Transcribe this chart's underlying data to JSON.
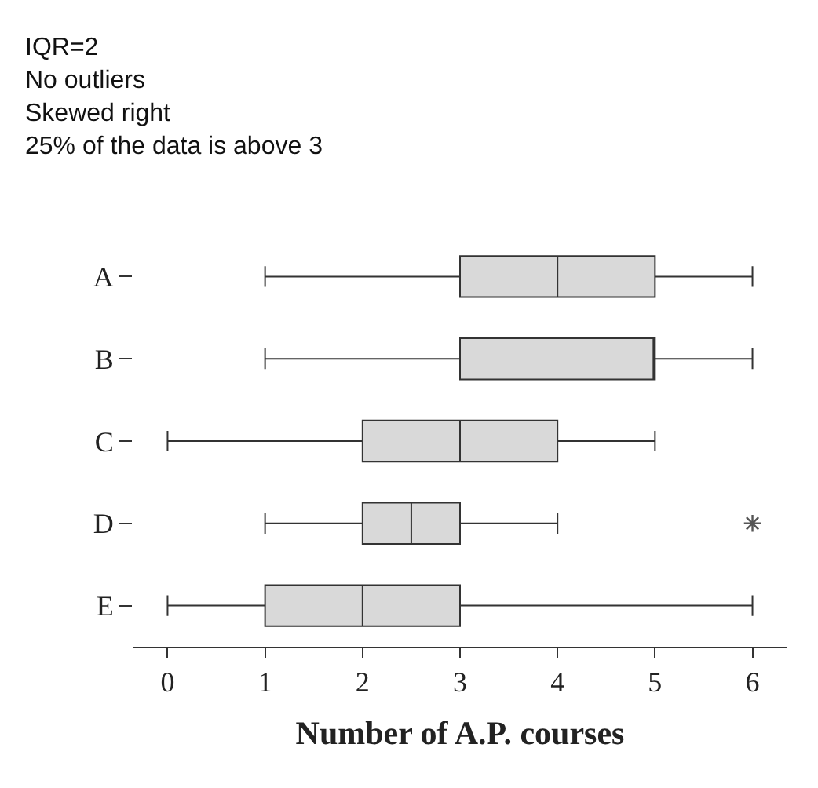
{
  "chart_data": {
    "type": "box",
    "orientation": "horizontal",
    "xlabel": "Number of A.P. courses",
    "annotations": [
      "IQR=2",
      "No outliers",
      "Skewed right",
      "25% of the data is above 3"
    ],
    "categories": [
      "A",
      "B",
      "C",
      "D",
      "E"
    ],
    "color": "#d9d9d9",
    "boxes": [
      {
        "low": 1,
        "q1": 3,
        "median": 4,
        "q3": 5,
        "high": 6
      },
      {
        "low": 1,
        "q1": 3,
        "median": 5,
        "q3": 5,
        "high": 6
      },
      {
        "low": 0,
        "q1": 2,
        "median": 3,
        "q3": 4,
        "high": 5
      },
      {
        "low": 1,
        "q1": 2,
        "median": 2.5,
        "q3": 3,
        "high": 4,
        "outliers": [
          6
        ]
      },
      {
        "low": 0,
        "q1": 1,
        "median": 2,
        "q3": 3,
        "high": 6
      }
    ],
    "xlim": [
      -0.35,
      6.35
    ],
    "xticks": [
      0,
      1,
      2,
      3,
      4,
      5,
      6
    ]
  }
}
